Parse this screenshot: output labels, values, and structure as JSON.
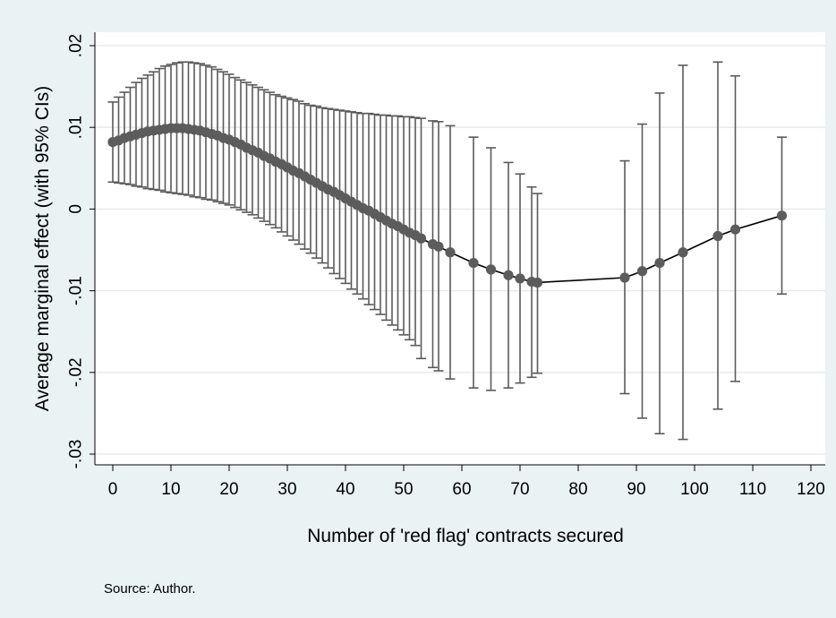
{
  "note": "Source: Author.",
  "colors": {
    "outer_background": "#eaf2f3",
    "plot_background": "#ffffff",
    "gridline": "#e3e8ea",
    "error_bar": "#5a5a5a",
    "marker": "#5c5c5c",
    "line": "#000000"
  },
  "chart_data": {
    "type": "line",
    "title": "",
    "xlabel": "Number of 'red flag' contracts secured",
    "ylabel": "Average marginal effect (with 95% CIs)",
    "xlim": [
      0,
      120
    ],
    "ylim": [
      -0.03,
      0.02
    ],
    "x_ticks": [
      0,
      10,
      20,
      30,
      40,
      50,
      60,
      70,
      80,
      90,
      100,
      110,
      120
    ],
    "x_tick_labels": [
      "0",
      "10",
      "20",
      "30",
      "40",
      "50",
      "60",
      "70",
      "80",
      "90",
      "100",
      "110",
      "120"
    ],
    "y_ticks": [
      0.02,
      0.01,
      0,
      -0.01,
      -0.02,
      -0.03
    ],
    "y_tick_labels": [
      ".02",
      ".01",
      "0",
      "-.01",
      "-.02",
      "-.03"
    ],
    "grid": true,
    "markers": "filled circles",
    "error_bars": "95% confidence intervals",
    "series": [
      {
        "points": [
          {
            "x": 0,
            "y": 0.0082,
            "lo": 0.0033,
            "hi": 0.0131
          },
          {
            "x": 1,
            "y": 0.0084,
            "lo": 0.0032,
            "hi": 0.0137
          },
          {
            "x": 2,
            "y": 0.0087,
            "lo": 0.0031,
            "hi": 0.0143
          },
          {
            "x": 3,
            "y": 0.0089,
            "lo": 0.003,
            "hi": 0.0149
          },
          {
            "x": 4,
            "y": 0.0091,
            "lo": 0.0028,
            "hi": 0.0155
          },
          {
            "x": 5,
            "y": 0.0093,
            "lo": 0.0027,
            "hi": 0.016
          },
          {
            "x": 6,
            "y": 0.0095,
            "lo": 0.0025,
            "hi": 0.0164
          },
          {
            "x": 7,
            "y": 0.0096,
            "lo": 0.0024,
            "hi": 0.0168
          },
          {
            "x": 8,
            "y": 0.0097,
            "lo": 0.0023,
            "hi": 0.0172
          },
          {
            "x": 9,
            "y": 0.0098,
            "lo": 0.0021,
            "hi": 0.0175
          },
          {
            "x": 10,
            "y": 0.0099,
            "lo": 0.002,
            "hi": 0.0177
          },
          {
            "x": 11,
            "y": 0.0099,
            "lo": 0.0019,
            "hi": 0.0179
          },
          {
            "x": 12,
            "y": 0.0099,
            "lo": 0.0018,
            "hi": 0.018
          },
          {
            "x": 13,
            "y": 0.0098,
            "lo": 0.0017,
            "hi": 0.018
          },
          {
            "x": 14,
            "y": 0.0097,
            "lo": 0.0015,
            "hi": 0.0179
          },
          {
            "x": 15,
            "y": 0.0096,
            "lo": 0.0014,
            "hi": 0.0178
          },
          {
            "x": 16,
            "y": 0.0094,
            "lo": 0.0012,
            "hi": 0.0176
          },
          {
            "x": 17,
            "y": 0.0092,
            "lo": 0.0011,
            "hi": 0.0174
          },
          {
            "x": 18,
            "y": 0.009,
            "lo": 0.0009,
            "hi": 0.0171
          },
          {
            "x": 19,
            "y": 0.0087,
            "lo": 0.0007,
            "hi": 0.0168
          },
          {
            "x": 20,
            "y": 0.0085,
            "lo": 0.0005,
            "hi": 0.0165
          },
          {
            "x": 21,
            "y": 0.0082,
            "lo": 0.0002,
            "hi": 0.0161
          },
          {
            "x": 22,
            "y": 0.0079,
            "lo": -0.0001,
            "hi": 0.0158
          },
          {
            "x": 23,
            "y": 0.0075,
            "lo": -0.0004,
            "hi": 0.0155
          },
          {
            "x": 24,
            "y": 0.0072,
            "lo": -0.0007,
            "hi": 0.0152
          },
          {
            "x": 25,
            "y": 0.0069,
            "lo": -0.0011,
            "hi": 0.0149
          },
          {
            "x": 26,
            "y": 0.0065,
            "lo": -0.0015,
            "hi": 0.0146
          },
          {
            "x": 27,
            "y": 0.0062,
            "lo": -0.0019,
            "hi": 0.0143
          },
          {
            "x": 28,
            "y": 0.0058,
            "lo": -0.0023,
            "hi": 0.014
          },
          {
            "x": 29,
            "y": 0.0055,
            "lo": -0.0028,
            "hi": 0.0138
          },
          {
            "x": 30,
            "y": 0.0051,
            "lo": -0.0033,
            "hi": 0.0136
          },
          {
            "x": 31,
            "y": 0.0047,
            "lo": -0.0038,
            "hi": 0.0134
          },
          {
            "x": 32,
            "y": 0.0044,
            "lo": -0.0043,
            "hi": 0.0132
          },
          {
            "x": 33,
            "y": 0.004,
            "lo": -0.0049,
            "hi": 0.0129
          },
          {
            "x": 34,
            "y": 0.0036,
            "lo": -0.0054,
            "hi": 0.0127
          },
          {
            "x": 35,
            "y": 0.0032,
            "lo": -0.006,
            "hi": 0.0126
          },
          {
            "x": 36,
            "y": 0.0028,
            "lo": -0.0066,
            "hi": 0.0124
          },
          {
            "x": 37,
            "y": 0.0024,
            "lo": -0.0072,
            "hi": 0.0123
          },
          {
            "x": 38,
            "y": 0.0021,
            "lo": -0.0079,
            "hi": 0.0122
          },
          {
            "x": 39,
            "y": 0.0017,
            "lo": -0.0085,
            "hi": 0.0121
          },
          {
            "x": 40,
            "y": 0.0013,
            "lo": -0.0091,
            "hi": 0.012
          },
          {
            "x": 41,
            "y": 0.0009,
            "lo": -0.0098,
            "hi": 0.0119
          },
          {
            "x": 42,
            "y": 0.0005,
            "lo": -0.0104,
            "hi": 0.0118
          },
          {
            "x": 43,
            "y": 0.0001,
            "lo": -0.011,
            "hi": 0.0117
          },
          {
            "x": 44,
            "y": -0.0002,
            "lo": -0.0117,
            "hi": 0.0117
          },
          {
            "x": 45,
            "y": -0.0006,
            "lo": -0.0123,
            "hi": 0.0116
          },
          {
            "x": 46,
            "y": -0.001,
            "lo": -0.0129,
            "hi": 0.0115
          },
          {
            "x": 47,
            "y": -0.0014,
            "lo": -0.0136,
            "hi": 0.0115
          },
          {
            "x": 48,
            "y": -0.0018,
            "lo": -0.0142,
            "hi": 0.0114
          },
          {
            "x": 49,
            "y": -0.0021,
            "lo": -0.0148,
            "hi": 0.0114
          },
          {
            "x": 50,
            "y": -0.0025,
            "lo": -0.0154,
            "hi": 0.0113
          },
          {
            "x": 51,
            "y": -0.0029,
            "lo": -0.016,
            "hi": 0.0113
          },
          {
            "x": 52,
            "y": -0.0032,
            "lo": -0.0167,
            "hi": 0.0112
          },
          {
            "x": 53,
            "y": -0.0036,
            "lo": -0.0183,
            "hi": 0.0111
          },
          {
            "x": 55,
            "y": -0.0043,
            "lo": -0.0194,
            "hi": 0.0108
          },
          {
            "x": 56,
            "y": -0.0046,
            "lo": -0.0198,
            "hi": 0.0107
          },
          {
            "x": 58,
            "y": -0.0053,
            "lo": -0.0208,
            "hi": 0.0102
          },
          {
            "x": 62,
            "y": -0.0066,
            "lo": -0.0219,
            "hi": 0.0088
          },
          {
            "x": 65,
            "y": -0.0074,
            "lo": -0.0222,
            "hi": 0.0075
          },
          {
            "x": 68,
            "y": -0.0081,
            "lo": -0.0219,
            "hi": 0.0057
          },
          {
            "x": 70,
            "y": -0.0085,
            "lo": -0.0213,
            "hi": 0.0043
          },
          {
            "x": 72,
            "y": -0.0089,
            "lo": -0.0206,
            "hi": 0.0027
          },
          {
            "x": 73,
            "y": -0.009,
            "lo": -0.0201,
            "hi": 0.0019
          },
          {
            "x": 88,
            "y": -0.0084,
            "lo": -0.0226,
            "hi": 0.0059
          },
          {
            "x": 91,
            "y": -0.0076,
            "lo": -0.0256,
            "hi": 0.0104
          },
          {
            "x": 94,
            "y": -0.0066,
            "lo": -0.0275,
            "hi": 0.0142
          },
          {
            "x": 98,
            "y": -0.0053,
            "lo": -0.0282,
            "hi": 0.0176
          },
          {
            "x": 104,
            "y": -0.0033,
            "lo": -0.0245,
            "hi": 0.018
          },
          {
            "x": 107,
            "y": -0.0025,
            "lo": -0.0211,
            "hi": 0.0163
          },
          {
            "x": 115,
            "y": -0.0008,
            "lo": -0.0104,
            "hi": 0.0088
          }
        ]
      }
    ]
  }
}
